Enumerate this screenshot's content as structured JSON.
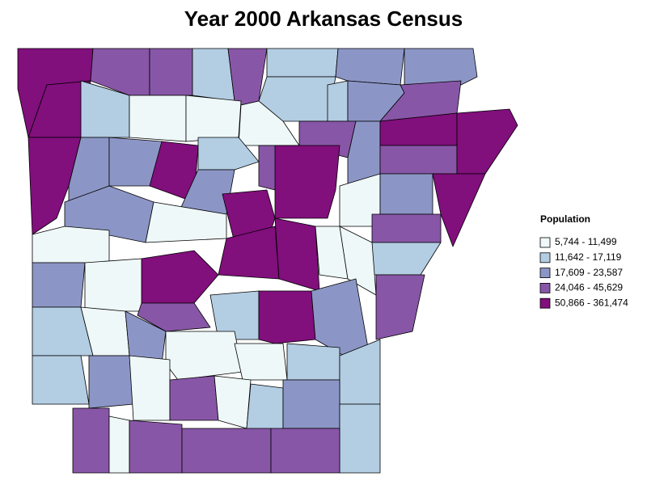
{
  "title": "Year 2000 Arkansas Census",
  "legend": {
    "title": "Population",
    "items": [
      {
        "label": "5,744 - 11,499",
        "color": "#eff8f8"
      },
      {
        "label": "11,642 - 17,119",
        "color": "#b3cde3"
      },
      {
        "label": "17,609 - 23,587",
        "color": "#8c96c6"
      },
      {
        "label": "24,046 - 45,629",
        "color": "#8856a7"
      },
      {
        "label": "50,866 - 361,474",
        "color": "#810f7c"
      }
    ]
  }
}
